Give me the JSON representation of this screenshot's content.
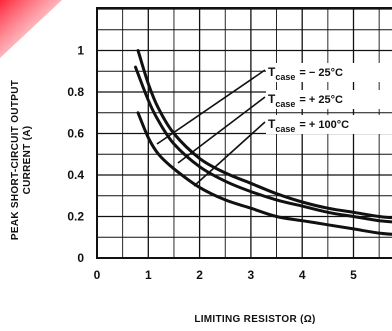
{
  "chart_data": {
    "type": "line",
    "xlabel": "LIMITING RESISTOR (Ω)",
    "ylabel_line1": "PEAK SHORT-CIRCUIT OUTPUT",
    "ylabel_line2": "CURRENT (A)",
    "xlim": [
      0,
      6
    ],
    "ylim": [
      0,
      1.2
    ],
    "x_ticks": [
      "0",
      "1",
      "2",
      "3",
      "4",
      "5"
    ],
    "y_ticks": [
      "0",
      "0.2",
      "0.4",
      "0.6",
      "0.8",
      "1"
    ],
    "grid": true,
    "series": [
      {
        "name_base": "T",
        "name_sub": "case",
        "name_value": "= − 25°C",
        "x": [
          0.8,
          1,
          1.2,
          1.5,
          2,
          2.5,
          3,
          3.5,
          4,
          4.5,
          5,
          5.5,
          6
        ],
        "y": [
          1.0,
          0.84,
          0.72,
          0.6,
          0.48,
          0.41,
          0.36,
          0.31,
          0.27,
          0.24,
          0.22,
          0.2,
          0.19
        ]
      },
      {
        "name_base": "T",
        "name_sub": "case",
        "name_value": "= + 25°C",
        "x": [
          0.75,
          1,
          1.2,
          1.5,
          2,
          2.5,
          3,
          3.5,
          4,
          4.5,
          5,
          5.5,
          6
        ],
        "y": [
          0.92,
          0.76,
          0.66,
          0.55,
          0.44,
          0.37,
          0.32,
          0.28,
          0.25,
          0.22,
          0.2,
          0.18,
          0.17
        ]
      },
      {
        "name_base": "T",
        "name_sub": "case",
        "name_value": "= + 100°C",
        "x": [
          0.8,
          1,
          1.2,
          1.5,
          2,
          2.5,
          3,
          3.5,
          4,
          4.5,
          5,
          5.5,
          6
        ],
        "y": [
          0.7,
          0.58,
          0.5,
          0.43,
          0.34,
          0.28,
          0.24,
          0.2,
          0.18,
          0.16,
          0.14,
          0.12,
          0.11
        ]
      }
    ]
  }
}
